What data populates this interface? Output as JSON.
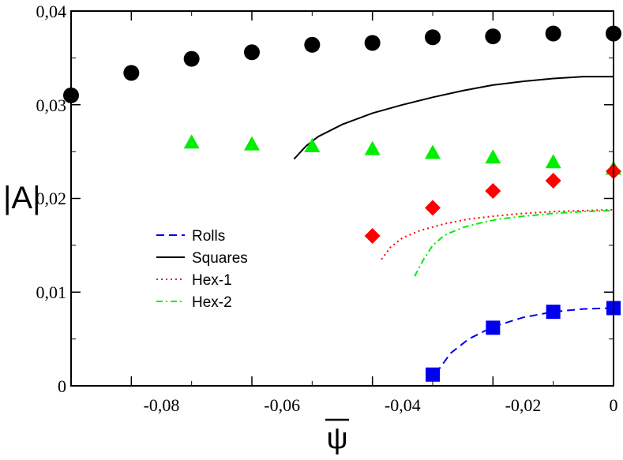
{
  "chart_data": {
    "type": "scatter",
    "xlabel": "ψ",
    "ylabel": "|A|",
    "xlim": [
      -0.09,
      0
    ],
    "ylim": [
      0,
      0.04
    ],
    "x_ticks": [
      -0.08,
      -0.06,
      -0.04,
      -0.02,
      0
    ],
    "x_tick_labels": [
      "-0,08",
      "-0,06",
      "-0,04",
      "-0,02",
      "0"
    ],
    "y_ticks": [
      0,
      0.01,
      0.02,
      0.03,
      0.04
    ],
    "y_tick_labels": [
      "0",
      "0,01",
      "0,02",
      "0,03",
      "0,04"
    ],
    "legend_position": "left-center",
    "point_series": [
      {
        "name": "circles",
        "marker": "circle",
        "color": "#000000",
        "x": [
          -0.09,
          -0.08,
          -0.07,
          -0.06,
          -0.05,
          -0.04,
          -0.03,
          -0.02,
          -0.01,
          0
        ],
        "y": [
          0.031,
          0.0334,
          0.0349,
          0.0356,
          0.0364,
          0.0366,
          0.0372,
          0.0373,
          0.0376,
          0.0376
        ]
      },
      {
        "name": "triangles",
        "marker": "triangle",
        "color": "#00ee00",
        "x": [
          -0.07,
          -0.06,
          -0.05,
          -0.04,
          -0.03,
          -0.02,
          -0.01,
          0
        ],
        "y": [
          0.026,
          0.0258,
          0.0256,
          0.0253,
          0.0249,
          0.0244,
          0.0239,
          0.0232
        ]
      },
      {
        "name": "diamonds",
        "marker": "diamond",
        "color": "#ff0000",
        "x": [
          -0.04,
          -0.03,
          -0.02,
          -0.01,
          0
        ],
        "y": [
          0.016,
          0.019,
          0.0208,
          0.0219,
          0.0229
        ]
      },
      {
        "name": "squares",
        "marker": "square",
        "color": "#0000ee",
        "x": [
          -0.03,
          -0.02,
          -0.01,
          0
        ],
        "y": [
          0.0012,
          0.0062,
          0.0079,
          0.0083
        ]
      }
    ],
    "line_series": [
      {
        "name": "Rolls",
        "dash": "10,6",
        "color": "#0000ee",
        "x": [
          -0.0295,
          -0.027,
          -0.024,
          -0.02,
          -0.015,
          -0.01,
          -0.005,
          0
        ],
        "y": [
          0.0013,
          0.0035,
          0.005,
          0.0063,
          0.0073,
          0.0079,
          0.0082,
          0.0083
        ]
      },
      {
        "name": "Squares",
        "dash": "",
        "color": "#000000",
        "x": [
          -0.053,
          -0.051,
          -0.049,
          -0.045,
          -0.04,
          -0.035,
          -0.03,
          -0.025,
          -0.02,
          -0.015,
          -0.01,
          -0.005,
          0
        ],
        "y": [
          0.0242,
          0.0256,
          0.0266,
          0.0279,
          0.0291,
          0.03,
          0.0308,
          0.0315,
          0.0321,
          0.0325,
          0.0328,
          0.033,
          0.033
        ]
      },
      {
        "name": "Hex-1",
        "dash": "2,4",
        "color": "#ff0000",
        "x": [
          -0.0385,
          -0.037,
          -0.035,
          -0.032,
          -0.028,
          -0.024,
          -0.02,
          -0.015,
          -0.01,
          -0.005,
          0
        ],
        "y": [
          0.0135,
          0.0148,
          0.0158,
          0.0166,
          0.0173,
          0.0178,
          0.0181,
          0.0184,
          0.0186,
          0.0187,
          0.0188
        ]
      },
      {
        "name": "Hex-2",
        "dash": "8,4,2,4",
        "color": "#00ee00",
        "x": [
          -0.033,
          -0.0315,
          -0.03,
          -0.028,
          -0.025,
          -0.022,
          -0.019,
          -0.015,
          -0.01,
          -0.005,
          0
        ],
        "y": [
          0.0117,
          0.0135,
          0.015,
          0.0161,
          0.0169,
          0.0174,
          0.0178,
          0.0181,
          0.0184,
          0.0186,
          0.0187
        ]
      }
    ]
  }
}
